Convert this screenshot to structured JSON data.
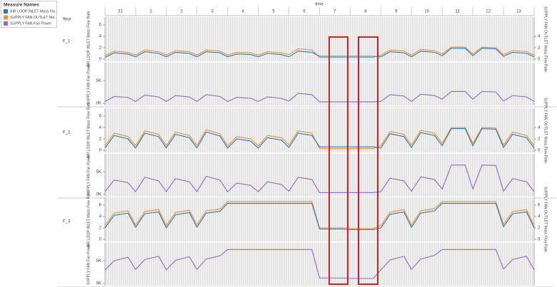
{
  "chart_data": {
    "type": "line",
    "title": "time",
    "row_title": "floor",
    "legend_title": "Measure Names",
    "series": [
      {
        "name": "AIR LOOP INLET Mass Flo..",
        "color": "#2c7bb6"
      },
      {
        "name": "SUPPLY FAN OUTLET Ma..",
        "color": "#f28e2b"
      },
      {
        "name": "SUPPLY FAN Fan Power",
        "color": "#8e6bbf"
      }
    ],
    "y_label": "AIR LOOP INLET Mass Flow Rate",
    "y2_label": "SUPPLY FAN OUTLET Mass Flow Rate",
    "power_label": "SUPPLY FAN Fan Power",
    "categories": [
      "31",
      "1",
      "2",
      "3",
      "4",
      "5",
      "6",
      "7",
      "8",
      "9",
      "10",
      "11",
      "12",
      "13"
    ],
    "xlim": [
      0,
      14
    ],
    "x": [
      0,
      0.3,
      0.75,
      1,
      1.3,
      1.75,
      2,
      2.3,
      2.75,
      3,
      3.3,
      3.75,
      4,
      4.3,
      4.75,
      5,
      5.3,
      5.75,
      6,
      6.3,
      6.75,
      7,
      7.3,
      7.75,
      8,
      8.3,
      8.75,
      9,
      9.3,
      9.75,
      10,
      10.3,
      10.75,
      11,
      11.3,
      11.75,
      12,
      12.3,
      12.75,
      13,
      13.3,
      13.75,
      14
    ],
    "ylim": [
      0,
      7
    ],
    "yticks": [
      0,
      2,
      4,
      6
    ],
    "power_lim": [
      0,
      8500
    ],
    "power_ticks": [
      {
        "value": 0,
        "label": "0K"
      },
      {
        "value": 5000,
        "label": "5K"
      }
    ],
    "rows": [
      {
        "floor": "F_1",
        "y2lim": [
          0,
          7
        ],
        "y2ticks": [
          0,
          2,
          4
        ],
        "values": [
          [
            0.3,
            1.1,
            0.9,
            0.4,
            1.3,
            1.0,
            0.4,
            1.2,
            1.0,
            0.4,
            1.3,
            1.1,
            0.4,
            0.9,
            0.8,
            0.4,
            1.0,
            0.8,
            0.4,
            1.4,
            1.2,
            0.5,
            0.5,
            0.5,
            0.5,
            0.5,
            0.5,
            0.4,
            1.3,
            1.1,
            0.4,
            1.4,
            1.2,
            0.6,
            1.9,
            1.9,
            0.6,
            1.9,
            1.8,
            0.5,
            1.2,
            1.0,
            0.4
          ],
          [
            0.6,
            1.4,
            1.2,
            0.7,
            1.6,
            1.3,
            0.7,
            1.5,
            1.3,
            0.7,
            1.6,
            1.4,
            0.7,
            1.2,
            1.1,
            0.7,
            1.3,
            1.1,
            0.8,
            1.8,
            1.6,
            0.3,
            0.3,
            0.3,
            0.3,
            0.3,
            0.3,
            0.7,
            1.6,
            1.4,
            0.7,
            1.7,
            1.5,
            0.9,
            2.1,
            2.1,
            0.9,
            2.1,
            2.0,
            0.8,
            1.5,
            1.3,
            0.7
          ],
          [
            400,
            1500,
            1300,
            400,
            1800,
            1400,
            400,
            1700,
            1400,
            400,
            1900,
            1500,
            400,
            1300,
            1100,
            400,
            1400,
            1100,
            500,
            2200,
            1900,
            300,
            300,
            300,
            300,
            300,
            300,
            400,
            1900,
            1600,
            400,
            2000,
            1700,
            900,
            2600,
            2600,
            900,
            2600,
            2500,
            500,
            1700,
            1400,
            400
          ]
        ]
      },
      {
        "floor": "F_2",
        "y2lim": [
          0,
          7
        ],
        "y2ticks": [
          0,
          2,
          4
        ],
        "values": [
          [
            0.4,
            2.6,
            2.0,
            0.4,
            3.0,
            2.4,
            0.4,
            2.8,
            2.2,
            0.4,
            3.2,
            2.5,
            0.4,
            2.0,
            1.6,
            0.4,
            2.2,
            1.8,
            0.5,
            3.0,
            2.6,
            0.6,
            0.6,
            0.6,
            0.6,
            0.6,
            0.6,
            0.4,
            2.9,
            2.4,
            0.5,
            3.1,
            2.6,
            0.8,
            3.8,
            3.8,
            0.8,
            3.8,
            3.7,
            0.5,
            2.8,
            2.2,
            0.4
          ],
          [
            0.8,
            3.0,
            2.4,
            0.8,
            3.4,
            2.8,
            0.8,
            3.2,
            2.6,
            0.8,
            3.6,
            2.9,
            0.8,
            2.4,
            2.0,
            0.8,
            2.6,
            2.2,
            0.9,
            3.4,
            3.0,
            0.3,
            0.3,
            0.3,
            0.3,
            0.3,
            0.3,
            0.8,
            3.3,
            2.8,
            0.9,
            3.5,
            3.0,
            1.2,
            4.0,
            4.0,
            1.2,
            4.0,
            3.9,
            0.9,
            3.2,
            2.6,
            0.8
          ],
          [
            600,
            3200,
            2600,
            600,
            3800,
            3000,
            600,
            3500,
            2800,
            600,
            4000,
            3200,
            600,
            2500,
            2000,
            600,
            2800,
            2200,
            700,
            3800,
            3300,
            400,
            400,
            400,
            400,
            400,
            400,
            600,
            3600,
            3000,
            700,
            3900,
            3300,
            1200,
            6500,
            6500,
            1200,
            6500,
            6400,
            700,
            3500,
            2800,
            600
          ]
        ]
      },
      {
        "floor": "F_3",
        "y2lim": [
          0,
          7
        ],
        "y2ticks": [
          0,
          2,
          4,
          6
        ],
        "values": [
          [
            2.0,
            4.2,
            4.6,
            2.1,
            4.5,
            4.8,
            2.0,
            4.3,
            4.7,
            2.1,
            4.6,
            4.9,
            6.3,
            6.3,
            6.3,
            6.3,
            6.3,
            6.3,
            6.3,
            6.3,
            6.3,
            1.8,
            1.8,
            1.8,
            1.7,
            1.7,
            1.7,
            2.0,
            4.4,
            4.8,
            2.1,
            4.6,
            5.0,
            6.3,
            6.3,
            6.3,
            6.3,
            6.3,
            6.3,
            2.2,
            4.5,
            4.8,
            2.0
          ],
          [
            2.4,
            4.6,
            5.0,
            2.5,
            4.9,
            5.2,
            2.4,
            4.7,
            5.1,
            2.5,
            5.0,
            5.3,
            6.6,
            6.6,
            6.6,
            6.6,
            6.6,
            6.6,
            6.6,
            6.6,
            6.6,
            2.0,
            2.0,
            2.0,
            1.9,
            1.9,
            1.9,
            2.4,
            4.8,
            5.2,
            2.5,
            5.0,
            5.4,
            6.6,
            6.6,
            6.6,
            6.6,
            6.6,
            6.6,
            2.6,
            4.9,
            5.2,
            2.4
          ],
          [
            3000,
            5000,
            5800,
            3100,
            5300,
            6000,
            3000,
            5100,
            5900,
            3100,
            5400,
            6100,
            7500,
            7500,
            7500,
            7500,
            7500,
            7500,
            7500,
            7500,
            7500,
            1200,
            1200,
            1200,
            1100,
            1100,
            1100,
            3000,
            5200,
            6000,
            3100,
            5400,
            6200,
            7500,
            7500,
            7500,
            7500,
            7500,
            7500,
            3200,
            5300,
            6000,
            3000
          ]
        ]
      }
    ]
  }
}
